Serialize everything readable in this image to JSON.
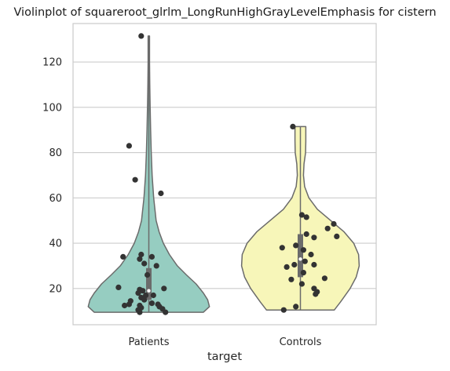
{
  "chart_data": {
    "type": "violin",
    "title": "Violinplot of squareroot_glrlm_LongRunHighGrayLevelEmphasis for cistern",
    "xlabel": "target",
    "ylabel": "",
    "ylim": [
      4,
      137
    ],
    "yticks": [
      20,
      40,
      60,
      80,
      100,
      120
    ],
    "categories": [
      "Patients",
      "Controls"
    ],
    "grid": "horizontal",
    "series": [
      {
        "category": "Patients",
        "color": "#96cdc1",
        "min": 9.5,
        "max": 131.5,
        "quartiles": [
          15,
          19,
          29
        ],
        "density": [
          [
            9.5,
            0.9
          ],
          [
            12,
            1.0
          ],
          [
            15,
            0.97
          ],
          [
            18,
            0.9
          ],
          [
            22,
            0.78
          ],
          [
            26,
            0.62
          ],
          [
            30,
            0.47
          ],
          [
            35,
            0.34
          ],
          [
            40,
            0.24
          ],
          [
            45,
            0.17
          ],
          [
            50,
            0.12
          ],
          [
            60,
            0.08
          ],
          [
            70,
            0.055
          ],
          [
            80,
            0.04
          ],
          [
            90,
            0.03
          ],
          [
            100,
            0.022
          ],
          [
            110,
            0.016
          ],
          [
            120,
            0.012
          ],
          [
            131.5,
            0.012
          ]
        ],
        "points": [
          [
            -0.05,
            131.5
          ],
          [
            -0.13,
            83
          ],
          [
            -0.09,
            68
          ],
          [
            0.08,
            62
          ],
          [
            -0.17,
            34
          ],
          [
            -0.05,
            35
          ],
          [
            -0.06,
            33
          ],
          [
            0.02,
            34
          ],
          [
            -0.03,
            31
          ],
          [
            0.05,
            30
          ],
          [
            -0.01,
            26
          ],
          [
            -0.2,
            20.5
          ],
          [
            0.1,
            20
          ],
          [
            -0.06,
            19.5
          ],
          [
            -0.04,
            19
          ],
          [
            -0.07,
            18
          ],
          [
            -0.02,
            17
          ],
          [
            -0.05,
            16
          ],
          [
            0.03,
            17
          ],
          [
            -0.03,
            15
          ],
          [
            0.02,
            13.5
          ],
          [
            -0.16,
            12.5
          ],
          [
            -0.13,
            13
          ],
          [
            -0.06,
            12.5
          ],
          [
            0.06,
            13
          ],
          [
            0.07,
            12
          ],
          [
            -0.05,
            11.5
          ],
          [
            -0.07,
            10.5
          ],
          [
            0.09,
            11
          ],
          [
            -0.06,
            9.5
          ],
          [
            0.11,
            9.5
          ],
          [
            -0.12,
            14.5
          ]
        ]
      },
      {
        "category": "Controls",
        "color": "#f7f6b9",
        "min": 10.5,
        "max": 91.5,
        "quartiles": [
          25,
          33,
          44
        ],
        "density": [
          [
            10.5,
            0.56
          ],
          [
            14,
            0.66
          ],
          [
            20,
            0.82
          ],
          [
            25,
            0.92
          ],
          [
            30,
            0.97
          ],
          [
            35,
            0.96
          ],
          [
            40,
            0.88
          ],
          [
            45,
            0.72
          ],
          [
            50,
            0.5
          ],
          [
            55,
            0.28
          ],
          [
            60,
            0.14
          ],
          [
            65,
            0.07
          ],
          [
            70,
            0.05
          ],
          [
            75,
            0.06
          ],
          [
            80,
            0.085
          ],
          [
            85,
            0.09
          ],
          [
            91.5,
            0.09
          ]
        ],
        "points": [
          [
            -0.05,
            91.5
          ],
          [
            0.01,
            52.5
          ],
          [
            0.04,
            51.5
          ],
          [
            0.22,
            48.5
          ],
          [
            0.18,
            46.5
          ],
          [
            0.24,
            43
          ],
          [
            0.04,
            44
          ],
          [
            0.09,
            42.5
          ],
          [
            -0.03,
            39
          ],
          [
            -0.12,
            38
          ],
          [
            0.02,
            37
          ],
          [
            0.07,
            35
          ],
          [
            0.03,
            32
          ],
          [
            -0.04,
            30.5
          ],
          [
            0.09,
            30.5
          ],
          [
            -0.09,
            29.5
          ],
          [
            0.02,
            27
          ],
          [
            -0.06,
            24
          ],
          [
            0.16,
            24.5
          ],
          [
            0.01,
            22
          ],
          [
            0.09,
            20
          ],
          [
            0.11,
            18.5
          ],
          [
            0.1,
            17.5
          ],
          [
            -0.03,
            12
          ],
          [
            -0.11,
            10.5
          ]
        ]
      }
    ]
  }
}
